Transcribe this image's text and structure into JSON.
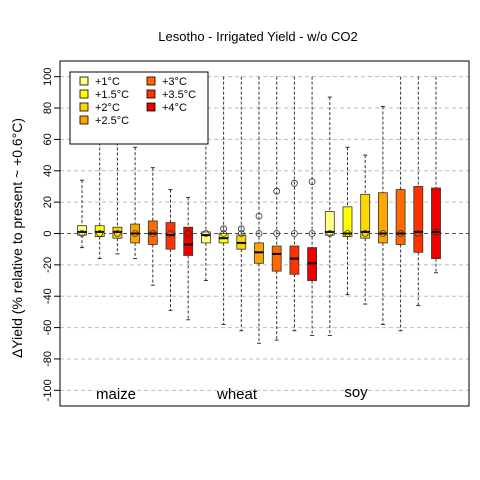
{
  "chart_data": {
    "type": "box",
    "title": "Lesotho - Irrigated Yield - w/o CO2",
    "ylabel": "ΔYield (% relative to present ~ +0.6°C)",
    "xlabel": "",
    "ylim": [
      -100,
      100
    ],
    "yticks": [
      -100,
      -80,
      -60,
      -40,
      -20,
      0,
      20,
      40,
      60,
      80,
      100
    ],
    "grid": true,
    "legend": {
      "placement": "top-left",
      "entries": [
        {
          "label": "+1°C",
          "color": "#FFFF80"
        },
        {
          "label": "+1.5°C",
          "color": "#FFFF00"
        },
        {
          "label": "+2°C",
          "color": "#FFD700"
        },
        {
          "label": "+2.5°C",
          "color": "#FFA500"
        },
        {
          "label": "+3°C",
          "color": "#FF6A00"
        },
        {
          "label": "+3.5°C",
          "color": "#FF3300"
        },
        {
          "label": "+4°C",
          "color": "#EE0000"
        }
      ]
    },
    "groups": [
      {
        "name": "maize",
        "boxes": [
          {
            "level": "+1°C",
            "min": -9,
            "q1": -1,
            "median": 1,
            "q3": 5,
            "max": 34,
            "mean": 0
          },
          {
            "level": "+1.5°C",
            "min": -16,
            "q1": -2,
            "median": 1,
            "q3": 5,
            "max": 58,
            "mean": 0
          },
          {
            "level": "+2°C",
            "min": -13,
            "q1": -3,
            "median": 1,
            "q3": 4,
            "max": 58,
            "mean": 0
          },
          {
            "level": "+2.5°C",
            "min": -16,
            "q1": -6,
            "median": 0,
            "q3": 6,
            "max": 55,
            "mean": 0
          },
          {
            "level": "+3°C",
            "min": -33,
            "q1": -7,
            "median": 0,
            "q3": 8,
            "max": 42,
            "mean": 0
          },
          {
            "level": "+3.5°C",
            "min": -49,
            "q1": -10,
            "median": -1,
            "q3": 7,
            "max": 28,
            "mean": 0
          },
          {
            "level": "+4°C",
            "min": -55,
            "q1": -14,
            "median": -7,
            "q3": 4,
            "max": 23,
            "mean": 0
          }
        ]
      },
      {
        "name": "wheat",
        "boxes": [
          {
            "level": "+1°C",
            "min": -30,
            "q1": -6,
            "median": -1,
            "q3": 1,
            "max": 100,
            "mean": 0
          },
          {
            "level": "+1.5°C",
            "min": -58,
            "q1": -6,
            "median": -3,
            "q3": 0,
            "max": 100,
            "mean": 0
          },
          {
            "level": "+2°C",
            "min": -62,
            "q1": -10,
            "median": -6,
            "q3": -1,
            "max": 100,
            "mean": 0
          },
          {
            "level": "+2.5°C",
            "min": -70,
            "q1": -19,
            "median": -12,
            "q3": -6,
            "max": 100,
            "mean": 0
          },
          {
            "level": "+3°C",
            "min": -68,
            "q1": -24,
            "median": -13,
            "q3": -8,
            "max": 100,
            "mean": 0
          },
          {
            "level": "+3.5°C",
            "min": -62,
            "q1": -26,
            "median": -16,
            "q3": -8,
            "max": 100,
            "mean": 0
          },
          {
            "level": "+4°C",
            "min": -65,
            "q1": -30,
            "median": -19,
            "q3": -9,
            "max": 100,
            "mean": 0
          }
        ],
        "outliers": [
          {
            "level": "+1.5°C",
            "values": [
              3
            ]
          },
          {
            "level": "+2°C",
            "values": [
              3
            ]
          },
          {
            "level": "+2.5°C",
            "values": [
              11
            ]
          },
          {
            "level": "+3°C",
            "values": [
              27
            ]
          },
          {
            "level": "+3.5°C",
            "values": [
              32
            ]
          },
          {
            "level": "+4°C",
            "values": [
              33
            ]
          }
        ]
      },
      {
        "name": "soy",
        "boxes": [
          {
            "level": "+1°C",
            "min": -65,
            "q1": -1,
            "median": 1,
            "q3": 14,
            "max": 87,
            "mean": 0
          },
          {
            "level": "+1.5°C",
            "min": -39,
            "q1": -2,
            "median": 0,
            "q3": 17,
            "max": 55,
            "mean": 0
          },
          {
            "level": "+2°C",
            "min": -45,
            "q1": -3,
            "median": 1,
            "q3": 25,
            "max": 50,
            "mean": 0
          },
          {
            "level": "+2.5°C",
            "min": -58,
            "q1": -6,
            "median": 0,
            "q3": 26,
            "max": 81,
            "mean": 0
          },
          {
            "level": "+3°C",
            "min": -62,
            "q1": -7,
            "median": 0,
            "q3": 28,
            "max": 100,
            "mean": 0
          },
          {
            "level": "+3.5°C",
            "min": -46,
            "q1": -12,
            "median": 1,
            "q3": 30,
            "max": 100,
            "mean": 0
          },
          {
            "level": "+4°C",
            "min": -25,
            "q1": -16,
            "median": 1,
            "q3": 29,
            "max": 100,
            "mean": 1
          }
        ]
      }
    ]
  }
}
